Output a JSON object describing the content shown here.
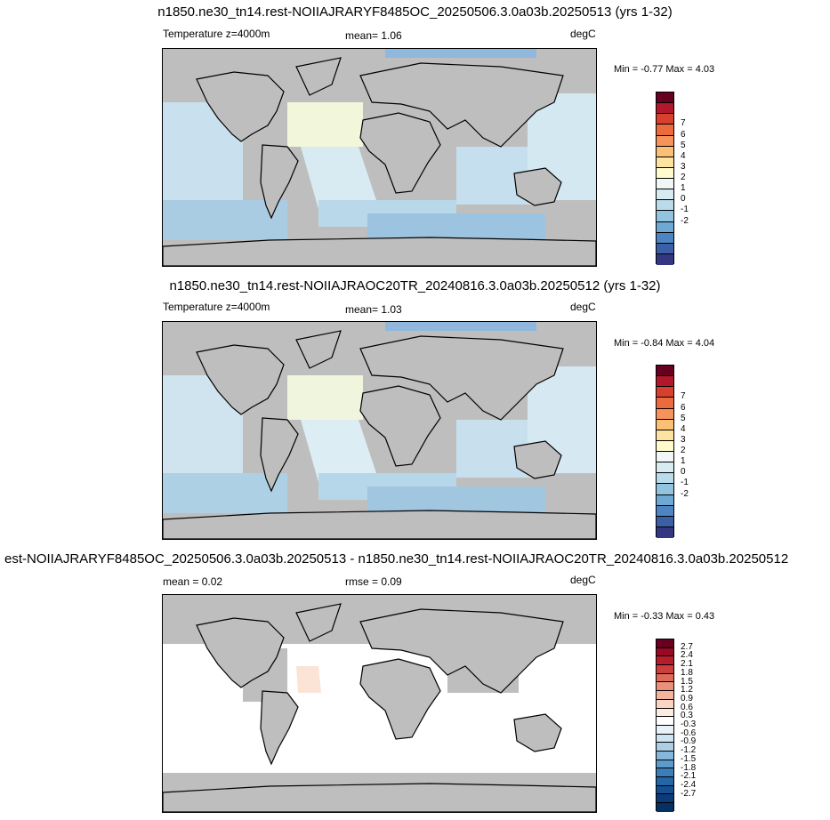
{
  "panels": [
    {
      "title": "n1850.ne30_tn14.rest-NOIIAJRARYF8485OC_20250506.3.0a03b.20250513 (yrs 1-32)",
      "left_label": "Temperature z=4000m",
      "center_label": "mean=   1.06",
      "right_label": "degC",
      "minmax": "Min =  -0.77 Max =   4.03",
      "colorbar": {
        "colors": [
          "#67001f",
          "#b2182b",
          "#d6402d",
          "#ec6b3c",
          "#f6935b",
          "#fbbf75",
          "#fde3a0",
          "#fffbcc",
          "#f0f7f6",
          "#d8ebf1",
          "#b9dbea",
          "#92c4e0",
          "#6ea9d3",
          "#4c85c1",
          "#3a5fa7",
          "#323780"
        ],
        "ticks": [
          "7",
          "6",
          "5",
          "4",
          "3",
          "2",
          "1",
          "0",
          "-1",
          "-2"
        ]
      }
    },
    {
      "title": "n1850.ne30_tn14.rest-NOIIAJRAOC20TR_20240816.3.0a03b.20250512 (yrs 1-32)",
      "left_label": "Temperature z=4000m",
      "center_label": "mean=   1.03",
      "right_label": "degC",
      "minmax": "Min =  -0.84 Max =   4.04",
      "colorbar": {
        "colors": [
          "#67001f",
          "#b2182b",
          "#d6402d",
          "#ec6b3c",
          "#f6935b",
          "#fbbf75",
          "#fde3a0",
          "#fffbcc",
          "#f0f7f6",
          "#d8ebf1",
          "#b9dbea",
          "#92c4e0",
          "#6ea9d3",
          "#4c85c1",
          "#3a5fa7",
          "#323780"
        ],
        "ticks": [
          "7",
          "6",
          "5",
          "4",
          "3",
          "2",
          "1",
          "0",
          "-1",
          "-2"
        ]
      }
    },
    {
      "title": "est-NOIIAJRARYF8485OC_20250506.3.0a03b.20250513 - n1850.ne30_tn14.rest-NOIIAJRAOC20TR_20240816.3.0a03b.20250512",
      "left_label": "mean =   0.02",
      "center_label": "rmse =   0.09",
      "right_label": "degC",
      "minmax": "Min =  -0.33 Max =   0.43",
      "colorbar": {
        "colors": [
          "#67001f",
          "#980a24",
          "#b71c2c",
          "#cc3f3d",
          "#de6a5a",
          "#ea8f7a",
          "#f4b49e",
          "#fad4c3",
          "#fdece3",
          "#ffffff",
          "#e9f2f8",
          "#cfe3f0",
          "#adcfe5",
          "#85b7d9",
          "#5d9bca",
          "#3b7fb9",
          "#2266a7",
          "#144f92",
          "#0b3b7a",
          "#053061"
        ],
        "ticks": [
          "2.7",
          "2.4",
          "2.1",
          "1.8",
          "1.5",
          "1.2",
          "0.9",
          "0.6",
          "0.3",
          "-0.3",
          "-0.6",
          "-0.9",
          "-1.2",
          "-1.5",
          "-1.8",
          "-2.1",
          "-2.4",
          "-2.7"
        ]
      }
    }
  ]
}
